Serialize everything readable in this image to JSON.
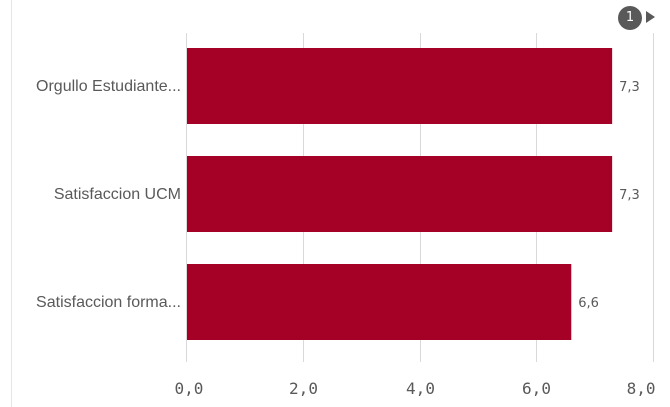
{
  "pager": {
    "page": "1",
    "next_icon": "triangle-right-icon"
  },
  "chart_data": {
    "type": "bar",
    "orientation": "horizontal",
    "title": "",
    "xlabel": "",
    "ylabel": "",
    "categories": [
      "Orgullo Estudiante...",
      "Satisfaccion UCM",
      "Satisfaccion forma..."
    ],
    "values": [
      7.3,
      7.3,
      6.6
    ],
    "value_labels": [
      "7,3",
      "7,3",
      "6,6"
    ],
    "xlim": [
      0,
      8
    ],
    "ticks": [
      0,
      2,
      4,
      6,
      8
    ],
    "tick_labels": [
      "0,0",
      "2,0",
      "4,0",
      "6,0",
      "8,0"
    ],
    "grid": true,
    "bar_color": "#a50026",
    "grid_color": "#d9d9d9",
    "text_color": "#595959"
  }
}
